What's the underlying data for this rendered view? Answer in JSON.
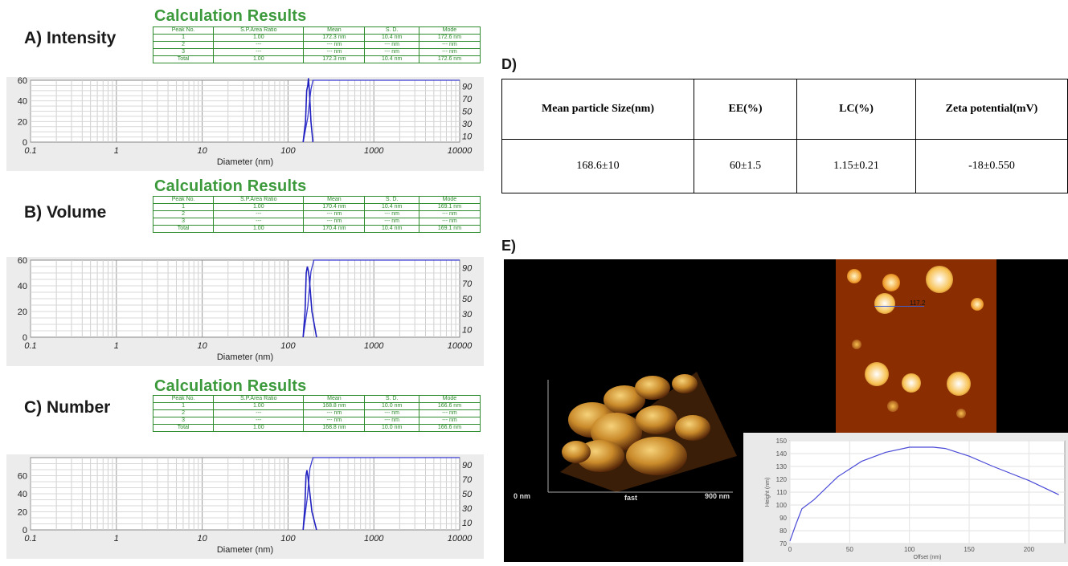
{
  "panels": {
    "a": "A) Intensity",
    "b": "B) Volume",
    "c": "C) Number",
    "d": "D)",
    "e": "E)"
  },
  "calc_title": "Calculation Results",
  "calc_tables": {
    "headers": [
      "Peak No.",
      "S.P.Area Ratio",
      "Mean",
      "S. D.",
      "Mode"
    ],
    "intensity": [
      [
        "1",
        "1.00",
        "172.3 nm",
        "10.4 nm",
        "172.6 nm"
      ],
      [
        "2",
        "---",
        "--- nm",
        "--- nm",
        "--- nm"
      ],
      [
        "3",
        "---",
        "--- nm",
        "--- nm",
        "--- nm"
      ],
      [
        "Total",
        "1.00",
        "172.3 nm",
        "10.4 nm",
        "172.6 nm"
      ]
    ],
    "volume": [
      [
        "1",
        "1.00",
        "170.4 nm",
        "10.4 nm",
        "169.1 nm"
      ],
      [
        "2",
        "---",
        "--- nm",
        "--- nm",
        "--- nm"
      ],
      [
        "3",
        "---",
        "--- nm",
        "--- nm",
        "--- nm"
      ],
      [
        "Total",
        "1.00",
        "170.4 nm",
        "10.4 nm",
        "169.1 nm"
      ]
    ],
    "number": [
      [
        "1",
        "1.00",
        "168.8 nm",
        "10.0 nm",
        "166.6 nm"
      ],
      [
        "2",
        "---",
        "--- nm",
        "--- nm",
        "--- nm"
      ],
      [
        "3",
        "---",
        "--- nm",
        "--- nm",
        "--- nm"
      ],
      [
        "Total",
        "1.00",
        "168.8 nm",
        "10.0 nm",
        "166.6 nm"
      ]
    ]
  },
  "summary_table": {
    "headers": [
      "Mean particle Size(nm)",
      "EE(%)",
      "LC(%)",
      "Zeta potential(mV)"
    ],
    "row": [
      "168.6±10",
      "60±1.5",
      "1.15±0.21",
      "-18±0.550"
    ]
  },
  "afm": {
    "axis_start": "0 nm",
    "axis_mid": "fast",
    "axis_end": "900 nm",
    "marker_label": "117.2",
    "profile_xlabel": "Offset (nm)",
    "profile_ylabel": "Height (nm)"
  },
  "chart_data": [
    {
      "type": "line",
      "name": "intensity",
      "xlabel": "Diameter (nm)",
      "x_scale": "log",
      "xlim": [
        0.1,
        10000
      ],
      "x_ticks": [
        "0.1",
        "1",
        "10",
        "100",
        "1000",
        "10000"
      ],
      "left_ylim": [
        0,
        60
      ],
      "left_ticks": [
        "0",
        "20",
        "40",
        "60"
      ],
      "right_ylim": [
        0,
        100
      ],
      "right_ticks": [
        "10",
        "30",
        "50",
        "70",
        "90"
      ],
      "distribution": {
        "x": [
          150,
          160,
          165,
          170,
          173,
          178,
          185,
          195
        ],
        "y": [
          0,
          20,
          50,
          55,
          62,
          48,
          20,
          0
        ]
      },
      "cumulative": {
        "x": [
          150,
          170,
          185,
          195,
          10000
        ],
        "y": [
          0,
          40,
          85,
          100,
          100
        ]
      }
    },
    {
      "type": "line",
      "name": "volume",
      "xlabel": "Diameter (nm)",
      "x_scale": "log",
      "xlim": [
        0.1,
        10000
      ],
      "x_ticks": [
        "0.1",
        "1",
        "10",
        "100",
        "1000",
        "10000"
      ],
      "left_ylim": [
        0,
        60
      ],
      "left_ticks": [
        "0",
        "20",
        "40",
        "60"
      ],
      "right_ylim": [
        0,
        100
      ],
      "right_ticks": [
        "10",
        "30",
        "50",
        "70",
        "90"
      ],
      "distribution": {
        "x": [
          150,
          158,
          163,
          168,
          172,
          177,
          190,
          215
        ],
        "y": [
          0,
          20,
          50,
          55,
          52,
          46,
          20,
          0
        ]
      },
      "cumulative": {
        "x": [
          150,
          170,
          185,
          200,
          10000
        ],
        "y": [
          0,
          40,
          85,
          100,
          100
        ]
      }
    },
    {
      "type": "line",
      "name": "number",
      "xlabel": "Diameter (nm)",
      "x_scale": "log",
      "xlim": [
        0.1,
        10000
      ],
      "x_ticks": [
        "0.1",
        "1",
        "10",
        "100",
        "1000",
        "10000"
      ],
      "left_ylim": [
        0,
        80
      ],
      "left_ticks": [
        "0",
        "20",
        "40",
        "60"
      ],
      "right_ylim": [
        0,
        100
      ],
      "right_ticks": [
        "10",
        "30",
        "50",
        "70",
        "90"
      ],
      "distribution": {
        "x": [
          150,
          157,
          162,
          166,
          170,
          176,
          190,
          215
        ],
        "y": [
          0,
          25,
          60,
          66,
          60,
          48,
          20,
          0
        ]
      },
      "cumulative": {
        "x": [
          150,
          168,
          180,
          195,
          10000
        ],
        "y": [
          0,
          45,
          85,
          100,
          100
        ]
      }
    },
    {
      "type": "line",
      "name": "afm-height-profile",
      "xlabel": "Offset (nm)",
      "ylabel": "Height (nm)",
      "xlim": [
        0,
        230
      ],
      "ylim": [
        70,
        150
      ],
      "x_ticks": [
        "0",
        "50",
        "100",
        "150",
        "200"
      ],
      "y_ticks": [
        "70",
        "80",
        "90",
        "100",
        "110",
        "120",
        "130",
        "140",
        "150"
      ],
      "x": [
        0,
        5,
        10,
        20,
        40,
        60,
        80,
        100,
        120,
        130,
        150,
        170,
        200,
        225
      ],
      "y": [
        72,
        85,
        97,
        104,
        122,
        134,
        141,
        145,
        145,
        144,
        138,
        130,
        119,
        108
      ]
    }
  ]
}
